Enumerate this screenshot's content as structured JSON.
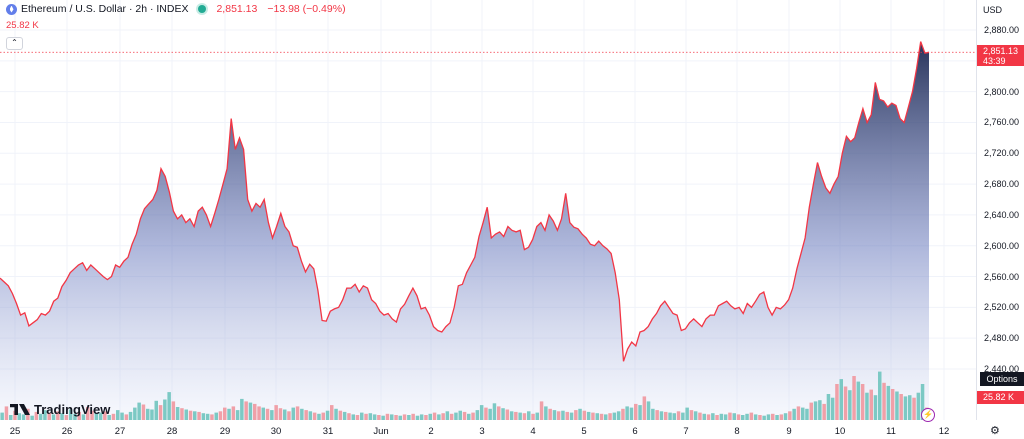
{
  "legend": {
    "symbol": "Ethereum / U.S. Dollar · 2h · INDEX",
    "price": "2,851.13",
    "change": "−13.98 (−0.49%)",
    "volume": "25.82 K",
    "collapse_icon": "chevron-up-icon",
    "market_status_color": "#22ab94"
  },
  "price_axis": {
    "currency": "USD",
    "current_price": "2,851.13",
    "countdown": "43:39",
    "volume_value": "25.82 K",
    "options_label": "Options"
  },
  "colors": {
    "line": "#f23645",
    "fill_top": "#1e2a52",
    "fill_bottom": "#e8edfb",
    "vol_up": "#7cc9c4",
    "vol_down": "#f0a0a8"
  },
  "logo": {
    "text": "TradingView"
  },
  "chart_data": {
    "type": "area",
    "ylim": [
      2440,
      2880
    ],
    "yticks": [
      "2,880.00",
      "2,840.00",
      "2,800.00",
      "2,760.00",
      "2,720.00",
      "2,680.00",
      "2,640.00",
      "2,600.00",
      "2,560.00",
      "2,520.00",
      "2,480.00",
      "2,440.00"
    ],
    "xticks": [
      "25",
      "26",
      "27",
      "28",
      "29",
      "30",
      "31",
      "Jun",
      "2",
      "3",
      "4",
      "5",
      "6",
      "7",
      "8",
      "9",
      "10",
      "11",
      "12"
    ],
    "x_start": "2024-05-24 18:00",
    "x_interval_hours": 2,
    "price": [
      2558,
      2553,
      2548,
      2538,
      2525,
      2510,
      2513,
      2496,
      2500,
      2504,
      2512,
      2510,
      2515,
      2528,
      2532,
      2547,
      2555,
      2565,
      2570,
      2575,
      2578,
      2568,
      2575,
      2570,
      2565,
      2560,
      2556,
      2560,
      2575,
      2572,
      2580,
      2585,
      2602,
      2615,
      2635,
      2648,
      2654,
      2660,
      2672,
      2700,
      2690,
      2670,
      2645,
      2635,
      2640,
      2630,
      2635,
      2625,
      2645,
      2650,
      2640,
      2625,
      2642,
      2660,
      2680,
      2700,
      2765,
      2725,
      2740,
      2725,
      2660,
      2645,
      2655,
      2650,
      2660,
      2630,
      2610,
      2625,
      2642,
      2625,
      2618,
      2600,
      2598,
      2580,
      2566,
      2576,
      2570,
      2542,
      2503,
      2502,
      2515,
      2518,
      2520,
      2530,
      2545,
      2545,
      2550,
      2540,
      2548,
      2545,
      2530,
      2525,
      2515,
      2510,
      2512,
      2505,
      2501,
      2518,
      2524,
      2535,
      2545,
      2535,
      2518,
      2520,
      2510,
      2495,
      2490,
      2488,
      2495,
      2500,
      2520,
      2548,
      2550,
      2565,
      2575,
      2585,
      2612,
      2630,
      2650,
      2610,
      2615,
      2618,
      2612,
      2625,
      2620,
      2618,
      2620,
      2595,
      2598,
      2608,
      2625,
      2630,
      2620,
      2640,
      2632,
      2620,
      2635,
      2668,
      2630,
      2624,
      2622,
      2615,
      2610,
      2602,
      2600,
      2606,
      2600,
      2596,
      2590,
      2565,
      2530,
      2450,
      2466,
      2475,
      2470,
      2488,
      2490,
      2495,
      2505,
      2512,
      2522,
      2528,
      2520,
      2512,
      2510,
      2490,
      2492,
      2500,
      2505,
      2500,
      2495,
      2505,
      2510,
      2510,
      2522,
      2525,
      2528,
      2522,
      2518,
      2520,
      2512,
      2525,
      2520,
      2528,
      2537,
      2540,
      2520,
      2510,
      2520,
      2518,
      2523,
      2530,
      2545,
      2570,
      2590,
      2610,
      2650,
      2680,
      2708,
      2690,
      2675,
      2668,
      2680,
      2690,
      2720,
      2742,
      2735,
      2740,
      2760,
      2778,
      2760,
      2770,
      2812,
      2790,
      2788,
      2780,
      2785,
      2782,
      2765,
      2760,
      2780,
      2800,
      2830,
      2865,
      2850,
      2851
    ],
    "volume": [
      {
        "v": 12,
        "c": "u"
      },
      {
        "v": 22,
        "c": "d"
      },
      {
        "v": 8,
        "c": "u"
      },
      {
        "v": 15,
        "c": "d"
      },
      {
        "v": 11,
        "c": "u"
      },
      {
        "v": 9,
        "c": "u"
      },
      {
        "v": 18,
        "c": "d"
      },
      {
        "v": 7,
        "c": "u"
      },
      {
        "v": 13,
        "c": "d"
      },
      {
        "v": 10,
        "c": "u"
      },
      {
        "v": 16,
        "c": "u"
      },
      {
        "v": 12,
        "c": "d"
      },
      {
        "v": 9,
        "c": "u"
      },
      {
        "v": 14,
        "c": "d"
      },
      {
        "v": 11,
        "c": "u"
      },
      {
        "v": 8,
        "c": "d"
      },
      {
        "v": 17,
        "c": "u"
      },
      {
        "v": 10,
        "c": "u"
      },
      {
        "v": 13,
        "c": "d"
      },
      {
        "v": 9,
        "c": "u"
      },
      {
        "v": 21,
        "c": "d"
      },
      {
        "v": 15,
        "c": "d"
      },
      {
        "v": 11,
        "c": "u"
      },
      {
        "v": 12,
        "c": "u"
      },
      {
        "v": 14,
        "c": "d"
      },
      {
        "v": 8,
        "c": "u"
      },
      {
        "v": 10,
        "c": "d"
      },
      {
        "v": 16,
        "c": "u"
      },
      {
        "v": 12,
        "c": "u"
      },
      {
        "v": 9,
        "c": "d"
      },
      {
        "v": 13,
        "c": "u"
      },
      {
        "v": 20,
        "c": "u"
      },
      {
        "v": 28,
        "c": "u"
      },
      {
        "v": 25,
        "c": "d"
      },
      {
        "v": 18,
        "c": "u"
      },
      {
        "v": 17,
        "c": "u"
      },
      {
        "v": 31,
        "c": "u"
      },
      {
        "v": 24,
        "c": "d"
      },
      {
        "v": 33,
        "c": "u"
      },
      {
        "v": 45,
        "c": "u"
      },
      {
        "v": 30,
        "c": "d"
      },
      {
        "v": 21,
        "c": "u"
      },
      {
        "v": 19,
        "c": "d"
      },
      {
        "v": 17,
        "c": "u"
      },
      {
        "v": 15,
        "c": "d"
      },
      {
        "v": 14,
        "c": "u"
      },
      {
        "v": 13,
        "c": "d"
      },
      {
        "v": 11,
        "c": "u"
      },
      {
        "v": 10,
        "c": "u"
      },
      {
        "v": 9,
        "c": "d"
      },
      {
        "v": 12,
        "c": "u"
      },
      {
        "v": 14,
        "c": "d"
      },
      {
        "v": 20,
        "c": "d"
      },
      {
        "v": 18,
        "c": "u"
      },
      {
        "v": 22,
        "c": "d"
      },
      {
        "v": 16,
        "c": "u"
      },
      {
        "v": 34,
        "c": "u"
      },
      {
        "v": 30,
        "c": "d"
      },
      {
        "v": 28,
        "c": "u"
      },
      {
        "v": 26,
        "c": "d"
      },
      {
        "v": 22,
        "c": "d"
      },
      {
        "v": 20,
        "c": "u"
      },
      {
        "v": 18,
        "c": "d"
      },
      {
        "v": 16,
        "c": "u"
      },
      {
        "v": 24,
        "c": "d"
      },
      {
        "v": 19,
        "c": "d"
      },
      {
        "v": 17,
        "c": "u"
      },
      {
        "v": 14,
        "c": "d"
      },
      {
        "v": 20,
        "c": "u"
      },
      {
        "v": 22,
        "c": "d"
      },
      {
        "v": 18,
        "c": "u"
      },
      {
        "v": 16,
        "c": "d"
      },
      {
        "v": 14,
        "c": "u"
      },
      {
        "v": 12,
        "c": "d"
      },
      {
        "v": 10,
        "c": "u"
      },
      {
        "v": 12,
        "c": "d"
      },
      {
        "v": 15,
        "c": "u"
      },
      {
        "v": 24,
        "c": "d"
      },
      {
        "v": 18,
        "c": "u"
      },
      {
        "v": 15,
        "c": "d"
      },
      {
        "v": 13,
        "c": "u"
      },
      {
        "v": 11,
        "c": "d"
      },
      {
        "v": 9,
        "c": "u"
      },
      {
        "v": 8,
        "c": "d"
      },
      {
        "v": 12,
        "c": "u"
      },
      {
        "v": 10,
        "c": "d"
      },
      {
        "v": 11,
        "c": "u"
      },
      {
        "v": 9,
        "c": "u"
      },
      {
        "v": 8,
        "c": "d"
      },
      {
        "v": 7,
        "c": "u"
      },
      {
        "v": 10,
        "c": "d"
      },
      {
        "v": 9,
        "c": "u"
      },
      {
        "v": 8,
        "c": "d"
      },
      {
        "v": 7,
        "c": "u"
      },
      {
        "v": 9,
        "c": "d"
      },
      {
        "v": 8,
        "c": "u"
      },
      {
        "v": 10,
        "c": "d"
      },
      {
        "v": 7,
        "c": "u"
      },
      {
        "v": 9,
        "c": "u"
      },
      {
        "v": 8,
        "c": "d"
      },
      {
        "v": 10,
        "c": "u"
      },
      {
        "v": 12,
        "c": "d"
      },
      {
        "v": 9,
        "c": "u"
      },
      {
        "v": 11,
        "c": "d"
      },
      {
        "v": 14,
        "c": "u"
      },
      {
        "v": 10,
        "c": "d"
      },
      {
        "v": 12,
        "c": "u"
      },
      {
        "v": 15,
        "c": "u"
      },
      {
        "v": 13,
        "c": "d"
      },
      {
        "v": 10,
        "c": "u"
      },
      {
        "v": 12,
        "c": "d"
      },
      {
        "v": 16,
        "c": "u"
      },
      {
        "v": 24,
        "c": "u"
      },
      {
        "v": 20,
        "c": "d"
      },
      {
        "v": 18,
        "c": "u"
      },
      {
        "v": 27,
        "c": "u"
      },
      {
        "v": 22,
        "c": "d"
      },
      {
        "v": 19,
        "c": "u"
      },
      {
        "v": 17,
        "c": "d"
      },
      {
        "v": 14,
        "c": "u"
      },
      {
        "v": 13,
        "c": "d"
      },
      {
        "v": 12,
        "c": "u"
      },
      {
        "v": 11,
        "c": "d"
      },
      {
        "v": 14,
        "c": "u"
      },
      {
        "v": 10,
        "c": "d"
      },
      {
        "v": 12,
        "c": "u"
      },
      {
        "v": 30,
        "c": "d"
      },
      {
        "v": 22,
        "c": "u"
      },
      {
        "v": 18,
        "c": "d"
      },
      {
        "v": 16,
        "c": "u"
      },
      {
        "v": 14,
        "c": "d"
      },
      {
        "v": 15,
        "c": "u"
      },
      {
        "v": 13,
        "c": "d"
      },
      {
        "v": 12,
        "c": "u"
      },
      {
        "v": 16,
        "c": "d"
      },
      {
        "v": 18,
        "c": "u"
      },
      {
        "v": 15,
        "c": "d"
      },
      {
        "v": 13,
        "c": "u"
      },
      {
        "v": 12,
        "c": "d"
      },
      {
        "v": 11,
        "c": "u"
      },
      {
        "v": 10,
        "c": "d"
      },
      {
        "v": 9,
        "c": "u"
      },
      {
        "v": 11,
        "c": "d"
      },
      {
        "v": 12,
        "c": "u"
      },
      {
        "v": 14,
        "c": "u"
      },
      {
        "v": 18,
        "c": "d"
      },
      {
        "v": 22,
        "c": "u"
      },
      {
        "v": 20,
        "c": "u"
      },
      {
        "v": 26,
        "c": "d"
      },
      {
        "v": 24,
        "c": "u"
      },
      {
        "v": 38,
        "c": "d"
      },
      {
        "v": 30,
        "c": "u"
      },
      {
        "v": 18,
        "c": "u"
      },
      {
        "v": 16,
        "c": "d"
      },
      {
        "v": 14,
        "c": "u"
      },
      {
        "v": 13,
        "c": "d"
      },
      {
        "v": 12,
        "c": "u"
      },
      {
        "v": 11,
        "c": "u"
      },
      {
        "v": 14,
        "c": "d"
      },
      {
        "v": 12,
        "c": "u"
      },
      {
        "v": 20,
        "c": "u"
      },
      {
        "v": 16,
        "c": "d"
      },
      {
        "v": 14,
        "c": "u"
      },
      {
        "v": 12,
        "c": "d"
      },
      {
        "v": 10,
        "c": "u"
      },
      {
        "v": 9,
        "c": "d"
      },
      {
        "v": 11,
        "c": "u"
      },
      {
        "v": 8,
        "c": "d"
      },
      {
        "v": 10,
        "c": "u"
      },
      {
        "v": 9,
        "c": "u"
      },
      {
        "v": 12,
        "c": "d"
      },
      {
        "v": 11,
        "c": "u"
      },
      {
        "v": 9,
        "c": "d"
      },
      {
        "v": 8,
        "c": "u"
      },
      {
        "v": 10,
        "c": "u"
      },
      {
        "v": 12,
        "c": "d"
      },
      {
        "v": 9,
        "c": "u"
      },
      {
        "v": 8,
        "c": "d"
      },
      {
        "v": 7,
        "c": "u"
      },
      {
        "v": 9,
        "c": "u"
      },
      {
        "v": 10,
        "c": "d"
      },
      {
        "v": 8,
        "c": "u"
      },
      {
        "v": 9,
        "c": "d"
      },
      {
        "v": 11,
        "c": "u"
      },
      {
        "v": 14,
        "c": "d"
      },
      {
        "v": 18,
        "c": "u"
      },
      {
        "v": 22,
        "c": "d"
      },
      {
        "v": 20,
        "c": "u"
      },
      {
        "v": 18,
        "c": "u"
      },
      {
        "v": 28,
        "c": "d"
      },
      {
        "v": 30,
        "c": "u"
      },
      {
        "v": 32,
        "c": "u"
      },
      {
        "v": 26,
        "c": "d"
      },
      {
        "v": 42,
        "c": "u"
      },
      {
        "v": 36,
        "c": "u"
      },
      {
        "v": 58,
        "c": "d"
      },
      {
        "v": 66,
        "c": "u"
      },
      {
        "v": 54,
        "c": "d"
      },
      {
        "v": 48,
        "c": "u"
      },
      {
        "v": 71,
        "c": "d"
      },
      {
        "v": 62,
        "c": "u"
      },
      {
        "v": 58,
        "c": "d"
      },
      {
        "v": 44,
        "c": "u"
      },
      {
        "v": 49,
        "c": "d"
      },
      {
        "v": 40,
        "c": "u"
      },
      {
        "v": 78,
        "c": "u"
      },
      {
        "v": 60,
        "c": "d"
      },
      {
        "v": 55,
        "c": "u"
      },
      {
        "v": 50,
        "c": "d"
      },
      {
        "v": 46,
        "c": "u"
      },
      {
        "v": 42,
        "c": "d"
      },
      {
        "v": 38,
        "c": "u"
      },
      {
        "v": 40,
        "c": "u"
      },
      {
        "v": 36,
        "c": "d"
      },
      {
        "v": 44,
        "c": "u"
      },
      {
        "v": 58,
        "c": "u"
      },
      {
        "v": 20,
        "c": "d"
      }
    ]
  }
}
